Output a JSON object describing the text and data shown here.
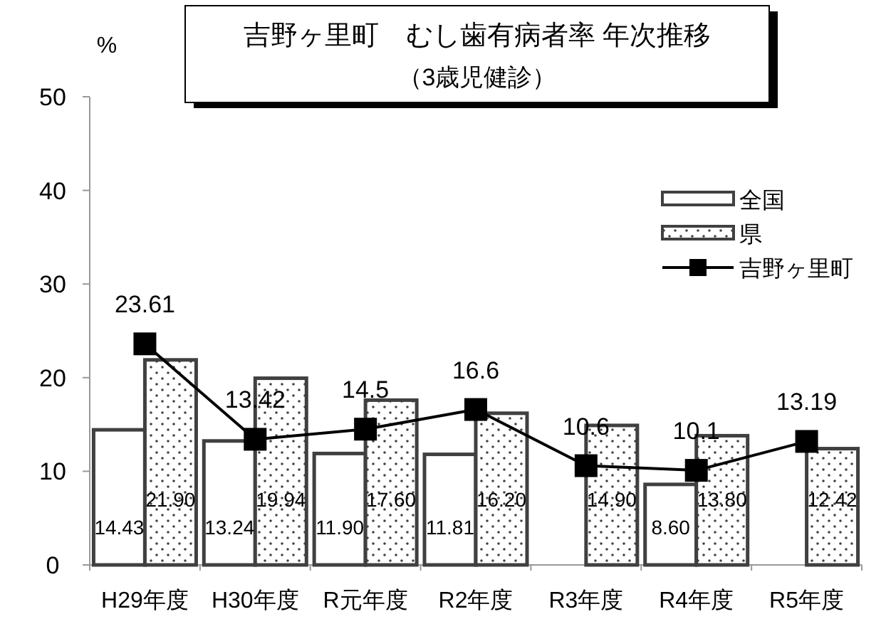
{
  "chart_data": {
    "type": "bar",
    "title": "吉野ヶ里町　むし歯有病者率 年次推移",
    "subtitle": "（3歳児健診）",
    "ylabel": "%",
    "categories": [
      "H29年度",
      "H30年度",
      "R元年度",
      "R2年度",
      "R3年度",
      "R4年度",
      "R5年度"
    ],
    "series": [
      {
        "name": "全国",
        "color": "#ffffff",
        "values": [
          14.43,
          13.24,
          11.9,
          11.81,
          null,
          8.6,
          null
        ],
        "value_labels": [
          "14.43",
          "13.24",
          "11.90",
          "11.81",
          null,
          "8.60",
          null
        ]
      },
      {
        "name": "県",
        "color": "#404040",
        "values": [
          21.9,
          19.94,
          17.6,
          16.2,
          14.9,
          13.8,
          12.42
        ],
        "value_labels": [
          "21.90",
          "19.94",
          "17.60",
          "16.20",
          "14.90",
          "13.80",
          "12.42"
        ]
      },
      {
        "name": "吉野ヶ里町",
        "type": "line",
        "color": "#000000",
        "marker": "square",
        "values": [
          23.61,
          13.42,
          14.5,
          16.6,
          10.6,
          10.1,
          13.19
        ],
        "value_labels": [
          "23.61",
          "13.42",
          "14.5",
          "16.6",
          "10.6",
          "10.1",
          "13.19"
        ]
      }
    ],
    "ylim": [
      0,
      50
    ],
    "yticks": [
      0,
      10,
      20,
      30,
      40,
      50
    ],
    "grid": false,
    "legend": "right"
  }
}
